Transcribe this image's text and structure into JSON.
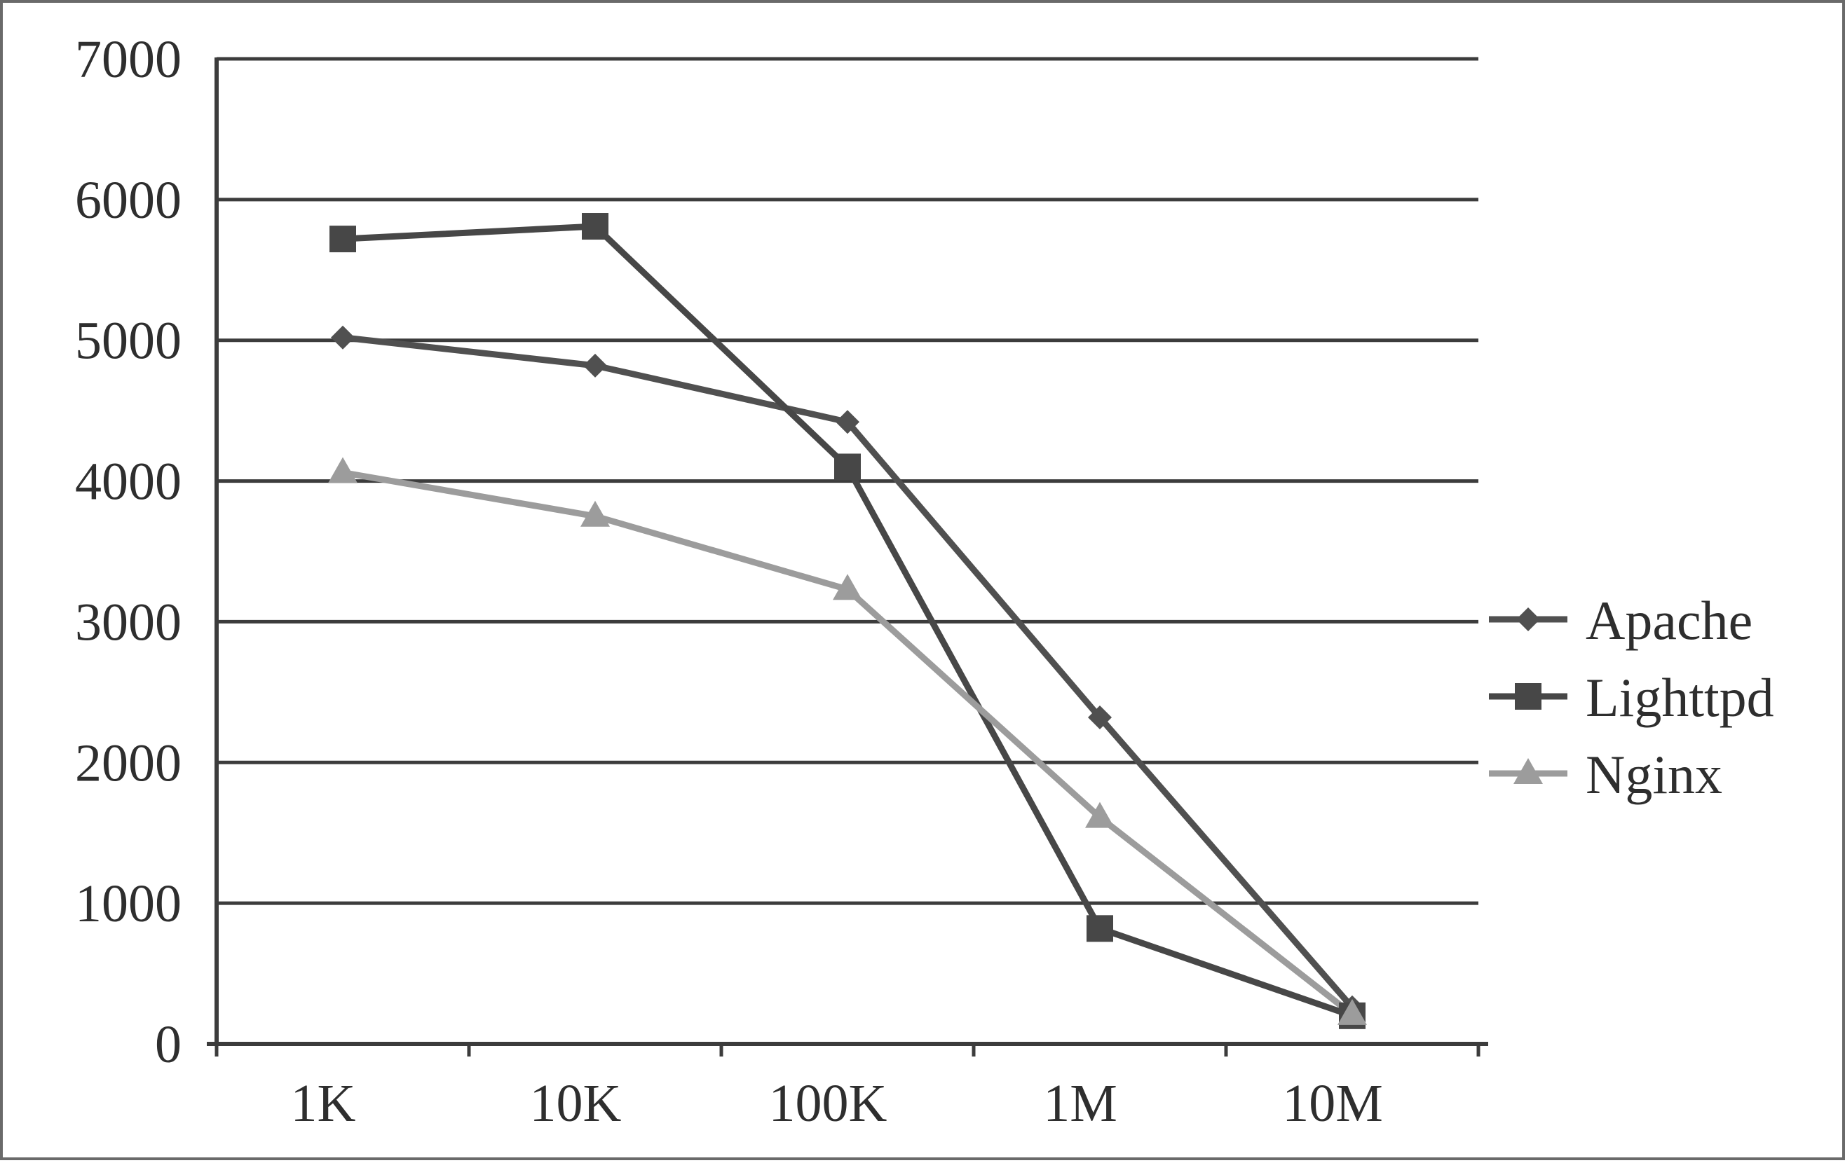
{
  "chart_data": {
    "type": "line",
    "categories": [
      "1K",
      "10K",
      "100K",
      "1M",
      "10M"
    ],
    "ylim": [
      0,
      7000
    ],
    "yticks": [
      0,
      1000,
      2000,
      3000,
      4000,
      5000,
      6000,
      7000
    ],
    "grid": true,
    "legend_position": "right",
    "series": [
      {
        "name": "Apache",
        "values": [
          5020,
          4820,
          4420,
          2320,
          260
        ],
        "color": "#505050",
        "marker": "diamond"
      },
      {
        "name": "Lighttpd",
        "values": [
          5720,
          5810,
          4100,
          820,
          200
        ],
        "color": "#474747",
        "marker": "square"
      },
      {
        "name": "Nginx",
        "values": [
          4060,
          3750,
          3230,
          1610,
          210
        ],
        "color": "#9c9c9c",
        "marker": "triangle"
      }
    ]
  }
}
